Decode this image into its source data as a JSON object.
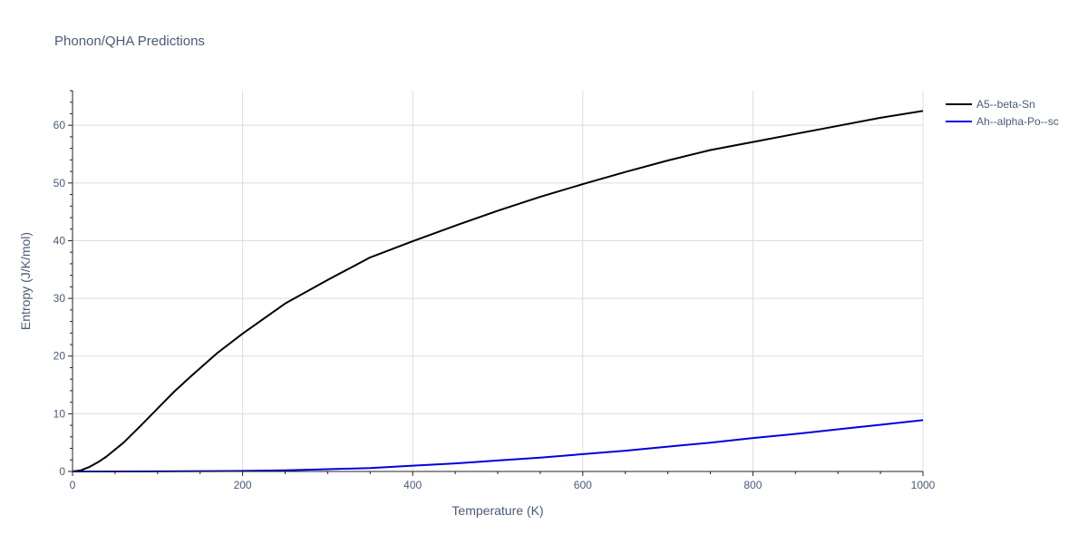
{
  "chart_data": {
    "type": "line",
    "title": "Phonon/QHA Predictions",
    "xlabel": "Temperature (K)",
    "ylabel": "Entropy (J/K/mol)",
    "xlim": [
      0,
      1000
    ],
    "ylim": [
      0,
      66
    ],
    "xticks": [
      0,
      200,
      400,
      600,
      800,
      1000
    ],
    "yticks": [
      0,
      10,
      20,
      30,
      40,
      50,
      60
    ],
    "grid": true,
    "legend_position": "top-right",
    "series": [
      {
        "name": "A5--beta-Sn",
        "color": "#000000",
        "x": [
          0,
          10,
          20,
          30,
          40,
          60,
          80,
          100,
          120,
          140,
          170,
          200,
          250,
          300,
          350,
          400,
          450,
          500,
          550,
          600,
          650,
          700,
          750,
          800,
          850,
          900,
          950,
          1000
        ],
        "y": [
          0,
          0.2,
          0.8,
          1.6,
          2.6,
          5.0,
          7.9,
          10.9,
          13.9,
          16.6,
          20.5,
          23.9,
          29.1,
          33.2,
          37.1,
          39.9,
          42.6,
          45.2,
          47.6,
          49.8,
          51.9,
          53.9,
          55.7,
          57.1,
          58.5,
          59.9,
          61.3,
          62.5
        ]
      },
      {
        "name": "Ah--alpha-Po--sc",
        "color": "#0000dd",
        "x": [
          0,
          100,
          200,
          250,
          300,
          350,
          400,
          450,
          500,
          550,
          600,
          650,
          700,
          750,
          800,
          850,
          900,
          950,
          1000
        ],
        "y": [
          0,
          0.02,
          0.1,
          0.2,
          0.4,
          0.6,
          1.0,
          1.4,
          1.9,
          2.4,
          3.0,
          3.6,
          4.3,
          5.0,
          5.8,
          6.5,
          7.3,
          8.1,
          8.9
        ]
      }
    ]
  }
}
